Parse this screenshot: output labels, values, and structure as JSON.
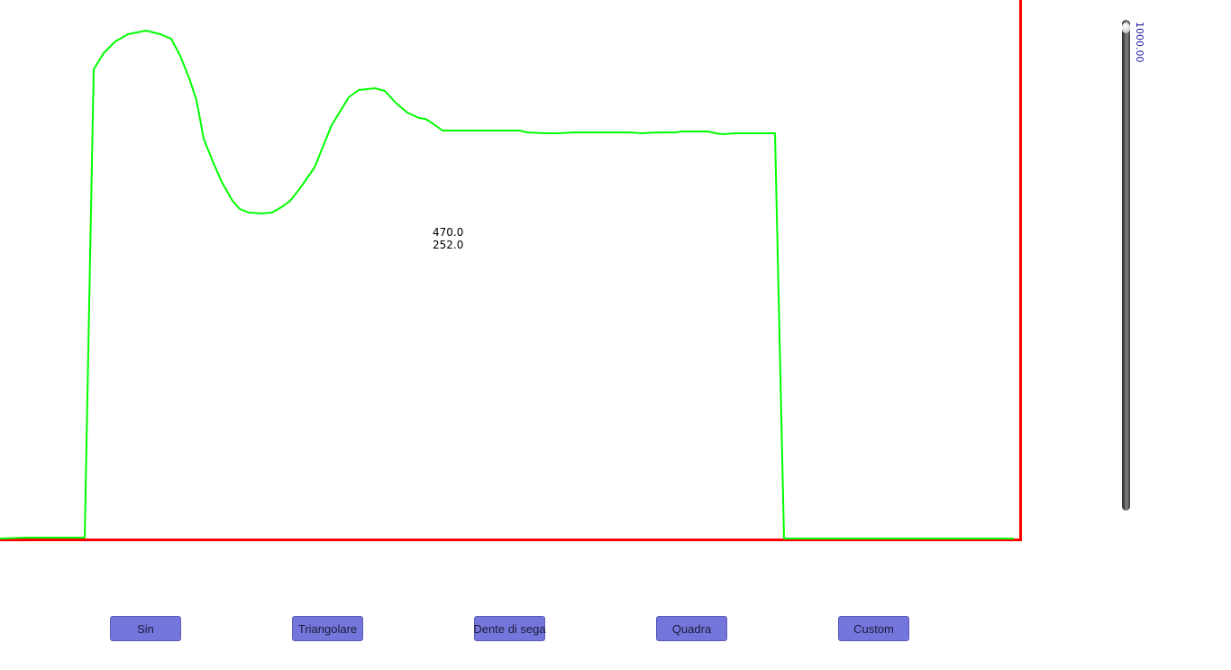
{
  "readout": {
    "line1": "470.0",
    "line2": "252.0"
  },
  "slider": {
    "value_label": "1000.00"
  },
  "buttons": [
    {
      "label": "Sin"
    },
    {
      "label": "Triangolare"
    },
    {
      "label": "Dente di sega"
    },
    {
      "label": "Quadra"
    },
    {
      "label": "Custom"
    }
  ],
  "colors": {
    "axes": "#ff0000",
    "signal": "#00ff00",
    "button_fill": "#7576db",
    "slider_text": "#1a1aa0"
  },
  "chart_data": {
    "type": "line",
    "series": [
      {
        "values": [
          [
            0,
            1
          ],
          [
            30,
            2
          ],
          [
            94,
            2
          ],
          [
            104,
            522
          ],
          [
            115,
            540
          ],
          [
            128,
            553
          ],
          [
            142,
            561
          ],
          [
            162,
            565
          ],
          [
            178,
            561
          ],
          [
            190,
            556
          ],
          [
            200,
            537
          ],
          [
            210,
            512
          ],
          [
            218,
            488
          ],
          [
            226,
            445
          ],
          [
            236,
            420
          ],
          [
            246,
            397
          ],
          [
            258,
            376
          ],
          [
            266,
            367
          ],
          [
            276,
            363
          ],
          [
            290,
            362
          ],
          [
            302,
            363
          ],
          [
            314,
            370
          ],
          [
            322,
            376
          ],
          [
            333,
            390
          ],
          [
            349,
            413
          ],
          [
            368,
            460
          ],
          [
            387,
            491
          ],
          [
            398,
            499
          ],
          [
            416,
            501
          ],
          [
            427,
            498
          ],
          [
            440,
            484
          ],
          [
            452,
            474
          ],
          [
            465,
            468
          ],
          [
            472,
            467
          ],
          [
            480,
            462
          ],
          [
            491,
            454
          ],
          [
            577,
            454
          ],
          [
            585,
            452
          ],
          [
            606,
            451
          ],
          [
            620,
            451
          ],
          [
            636,
            452
          ],
          [
            700,
            452
          ],
          [
            712,
            451
          ],
          [
            730,
            452
          ],
          [
            750,
            452
          ],
          [
            756,
            453
          ],
          [
            786,
            453
          ],
          [
            794,
            451
          ],
          [
            803,
            450
          ],
          [
            815,
            451
          ],
          [
            860,
            451
          ],
          [
            870,
            1
          ],
          [
            1125,
            1
          ]
        ]
      }
    ]
  }
}
